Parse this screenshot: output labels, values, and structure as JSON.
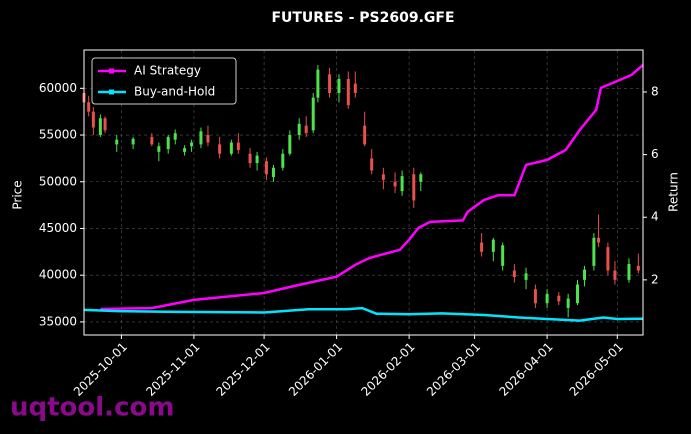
{
  "chart_data": {
    "type": "candlestick",
    "title": "FUTURES - PS2609.GFE",
    "ylabel": "Price",
    "y2label": "Return",
    "watermark": "uqtool.com",
    "up_color": "#4de34d",
    "down_color": "#e8514d",
    "grid": true,
    "legend": "upper-left",
    "xlim": [
      "2025-09-15",
      "2026-05-12"
    ],
    "xticks": [
      "2025-10-01",
      "2025-11-01",
      "2025-12-01",
      "2026-01-01",
      "2026-02-01",
      "2026-03-01",
      "2026-04-01",
      "2026-05-01"
    ],
    "ylim": [
      33600,
      64100
    ],
    "yticks": [
      35000,
      40000,
      45000,
      50000,
      55000,
      60000
    ],
    "y2lim": [
      0.24,
      9.34
    ],
    "y2ticks": [
      2,
      4,
      6,
      8
    ],
    "x": [
      "2025-09-15",
      "2025-09-17",
      "2025-09-19",
      "2025-09-22",
      "2025-09-24",
      "2025-09-29",
      "2025-10-06",
      "2025-10-14",
      "2025-10-17",
      "2025-10-21",
      "2025-10-24",
      "2025-10-28",
      "2025-10-31",
      "2025-11-04",
      "2025-11-07",
      "2025-11-12",
      "2025-11-17",
      "2025-11-20",
      "2025-11-25",
      "2025-11-28",
      "2025-12-02",
      "2025-12-05",
      "2025-12-09",
      "2025-12-12",
      "2025-12-16",
      "2025-12-19",
      "2025-12-22",
      "2025-12-24",
      "2025-12-29",
      "2026-01-02",
      "2026-01-06",
      "2026-01-09",
      "2026-01-13",
      "2026-01-16",
      "2026-01-21",
      "2026-01-26",
      "2026-01-29",
      "2026-02-03",
      "2026-02-06",
      "2026-03-04",
      "2026-03-09",
      "2026-03-13",
      "2026-03-18",
      "2026-03-23",
      "2026-03-27",
      "2026-04-01",
      "2026-04-06",
      "2026-04-10",
      "2026-04-14",
      "2026-04-17",
      "2026-04-21",
      "2026-04-23",
      "2026-04-27",
      "2026-04-30",
      "2026-05-06",
      "2026-05-10"
    ],
    "open": [
      59500,
      58500,
      57500,
      55000,
      56800,
      54000,
      54000,
      54800,
      53200,
      53500,
      54500,
      53200,
      53800,
      54000,
      55000,
      54000,
      53000,
      54200,
      53000,
      52000,
      52200,
      50500,
      51500,
      53000,
      55000,
      56000,
      55500,
      59000,
      61500,
      59500,
      61000,
      60500,
      56000,
      52500,
      50800,
      50000,
      49000,
      50800,
      50000,
      43500,
      42500,
      41000,
      40500,
      39500,
      38500,
      37000,
      37800,
      36500,
      37000,
      39500,
      41000,
      44000,
      43000,
      40500,
      39500,
      41000
    ],
    "high": [
      60500,
      59200,
      58000,
      57200,
      57000,
      55000,
      54800,
      55200,
      54200,
      55000,
      55600,
      53900,
      54500,
      55800,
      56000,
      54800,
      54500,
      55200,
      53600,
      53200,
      52600,
      51800,
      53500,
      55500,
      56800,
      57000,
      59500,
      62500,
      62200,
      61500,
      61800,
      61800,
      57500,
      53500,
      51500,
      51000,
      51200,
      51500,
      51000,
      44500,
      44000,
      43500,
      41200,
      40800,
      39000,
      38500,
      38200,
      38000,
      39500,
      41000,
      44500,
      46500,
      43500,
      41500,
      41800,
      42300
    ],
    "low": [
      58000,
      57000,
      55000,
      54800,
      55200,
      53200,
      53500,
      53800,
      52200,
      53000,
      54000,
      52800,
      53200,
      53600,
      53800,
      52500,
      52800,
      53000,
      51500,
      51200,
      50200,
      50000,
      51200,
      52800,
      54500,
      54800,
      55200,
      58500,
      59000,
      58500,
      57800,
      59000,
      53800,
      50800,
      49200,
      48800,
      48500,
      47200,
      49000,
      42000,
      41500,
      40500,
      39200,
      38500,
      36500,
      36500,
      36800,
      35500,
      36800,
      38800,
      40500,
      43000,
      40000,
      39000,
      39200,
      40200
    ],
    "close": [
      58500,
      57500,
      55800,
      56800,
      55500,
      54500,
      54600,
      54000,
      53800,
      54800,
      55200,
      53600,
      54200,
      55400,
      54200,
      53000,
      54200,
      53400,
      52000,
      52800,
      50800,
      51500,
      53000,
      55000,
      56200,
      55200,
      59000,
      62000,
      59500,
      61000,
      58200,
      59500,
      54000,
      51200,
      50200,
      49500,
      50600,
      48000,
      50800,
      42500,
      43800,
      43200,
      39800,
      40200,
      37000,
      38000,
      37200,
      37500,
      39000,
      40600,
      44000,
      43500,
      40500,
      39500,
      41200,
      40500
    ],
    "series": [
      {
        "name": "AI Strategy",
        "color": "#ff00ff",
        "axis": "y2",
        "x": [
          "2025-09-22",
          "2025-10-14",
          "2025-11-01",
          "2025-12-01",
          "2025-12-16",
          "2026-01-01",
          "2026-01-09",
          "2026-01-15",
          "2026-01-28",
          "2026-02-01",
          "2026-02-05",
          "2026-02-10",
          "2026-02-24",
          "2026-02-26",
          "2026-03-05",
          "2026-03-11",
          "2026-03-18",
          "2026-03-23",
          "2026-04-01",
          "2026-04-09",
          "2026-04-15",
          "2026-04-22",
          "2026-04-24",
          "2026-05-07",
          "2026-05-12"
        ],
        "values": [
          1.07,
          1.1,
          1.36,
          1.58,
          1.84,
          2.1,
          2.48,
          2.7,
          2.96,
          3.28,
          3.66,
          3.85,
          3.9,
          4.17,
          4.55,
          4.7,
          4.7,
          5.67,
          5.83,
          6.15,
          6.79,
          7.43,
          8.13,
          8.54,
          8.86
        ]
      },
      {
        "name": "Buy-and-Hold",
        "color": "#00e5ff",
        "axis": "y2",
        "x": [
          "2025-09-15",
          "2025-10-01",
          "2025-10-20",
          "2025-11-10",
          "2025-12-01",
          "2025-12-20",
          "2026-01-05",
          "2026-01-12",
          "2026-01-18",
          "2026-02-01",
          "2026-02-15",
          "2026-03-05",
          "2026-03-20",
          "2026-04-01",
          "2026-04-15",
          "2026-04-25",
          "2026-05-01",
          "2026-05-12"
        ],
        "values": [
          1.04,
          1.0,
          0.98,
          0.97,
          0.96,
          1.06,
          1.06,
          1.1,
          0.92,
          0.9,
          0.93,
          0.88,
          0.8,
          0.75,
          0.7,
          0.8,
          0.75,
          0.76
        ]
      }
    ]
  }
}
